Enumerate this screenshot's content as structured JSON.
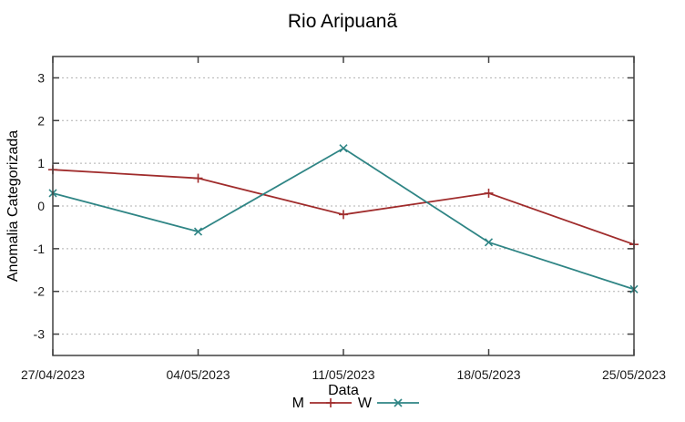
{
  "chart_data": {
    "type": "line",
    "title": "Rio Aripuanã",
    "xlabel": "Data",
    "ylabel": "Anomalia Categorizada",
    "categories": [
      "27/04/2023",
      "04/05/2023",
      "11/05/2023",
      "18/05/2023",
      "25/05/2023"
    ],
    "ylim": [
      -3.5,
      3.5
    ],
    "yticks": [
      -3,
      -2,
      -1,
      0,
      1,
      2,
      3
    ],
    "grid": "horizontal-dotted",
    "legend_position": "bottom-center",
    "axis_color": "#404040",
    "grid_color": "#b0b0b0",
    "background_color": "#ffffff",
    "series": [
      {
        "name": "M",
        "color": "#a02c2c",
        "marker": "plus",
        "values": [
          0.85,
          0.65,
          -0.2,
          0.3,
          -0.9
        ]
      },
      {
        "name": "W",
        "color": "#2f8585",
        "marker": "cross",
        "values": [
          0.3,
          -0.6,
          1.35,
          -0.85,
          -1.95
        ]
      }
    ]
  }
}
